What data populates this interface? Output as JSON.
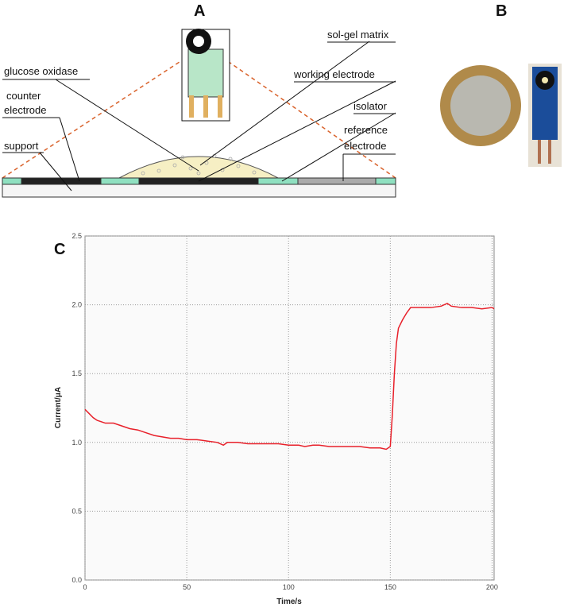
{
  "panels": {
    "a": "A",
    "b": "B",
    "c": "C"
  },
  "diagram": {
    "glucose_oxidase": "glucose oxidase",
    "sol_gel_matrix": "sol-gel matrix",
    "working_electrode": "working electrode",
    "counter_electrode": {
      "lines": [
        "counter",
        "electrode"
      ]
    },
    "isolator": "isolator",
    "reference_electrode": {
      "lines": [
        "reference",
        "electrode"
      ]
    },
    "support": "support"
  },
  "chart_data": {
    "type": "line",
    "x_label": "Time/s",
    "y_label": "Current/μA",
    "color": "#e8202a",
    "grid": true,
    "xlim": [
      0,
      201
    ],
    "xticks": [
      0,
      50,
      100,
      150,
      200
    ],
    "ylim": [
      0,
      2.5
    ],
    "yticks": [
      {
        "value": 0,
        "label": "0.0"
      },
      0.5,
      {
        "value": 1,
        "label": "1.0"
      },
      1.5,
      {
        "value": 2,
        "label": "2.0"
      },
      2.5
    ],
    "x": [
      0,
      2,
      4,
      6,
      8,
      10,
      14,
      18,
      22,
      26,
      30,
      34,
      38,
      42,
      46,
      50,
      55,
      60,
      65,
      68,
      70,
      75,
      80,
      85,
      90,
      95,
      100,
      105,
      108,
      112,
      115,
      120,
      125,
      130,
      135,
      140,
      145,
      148,
      150,
      151,
      152,
      153,
      154,
      156,
      158,
      160,
      165,
      170,
      175,
      178,
      180,
      185,
      190,
      195,
      200,
      201
    ],
    "values": [
      1.24,
      1.21,
      1.18,
      1.16,
      1.15,
      1.14,
      1.14,
      1.12,
      1.1,
      1.09,
      1.07,
      1.05,
      1.04,
      1.03,
      1.03,
      1.02,
      1.02,
      1.01,
      1.0,
      0.98,
      1.0,
      1.0,
      0.99,
      0.99,
      0.99,
      0.99,
      0.98,
      0.98,
      0.97,
      0.98,
      0.98,
      0.97,
      0.97,
      0.97,
      0.97,
      0.96,
      0.96,
      0.95,
      0.97,
      1.2,
      1.5,
      1.72,
      1.83,
      1.89,
      1.94,
      1.98,
      1.98,
      1.98,
      1.99,
      2.01,
      1.99,
      1.98,
      1.98,
      1.97,
      1.98,
      1.97
    ]
  }
}
